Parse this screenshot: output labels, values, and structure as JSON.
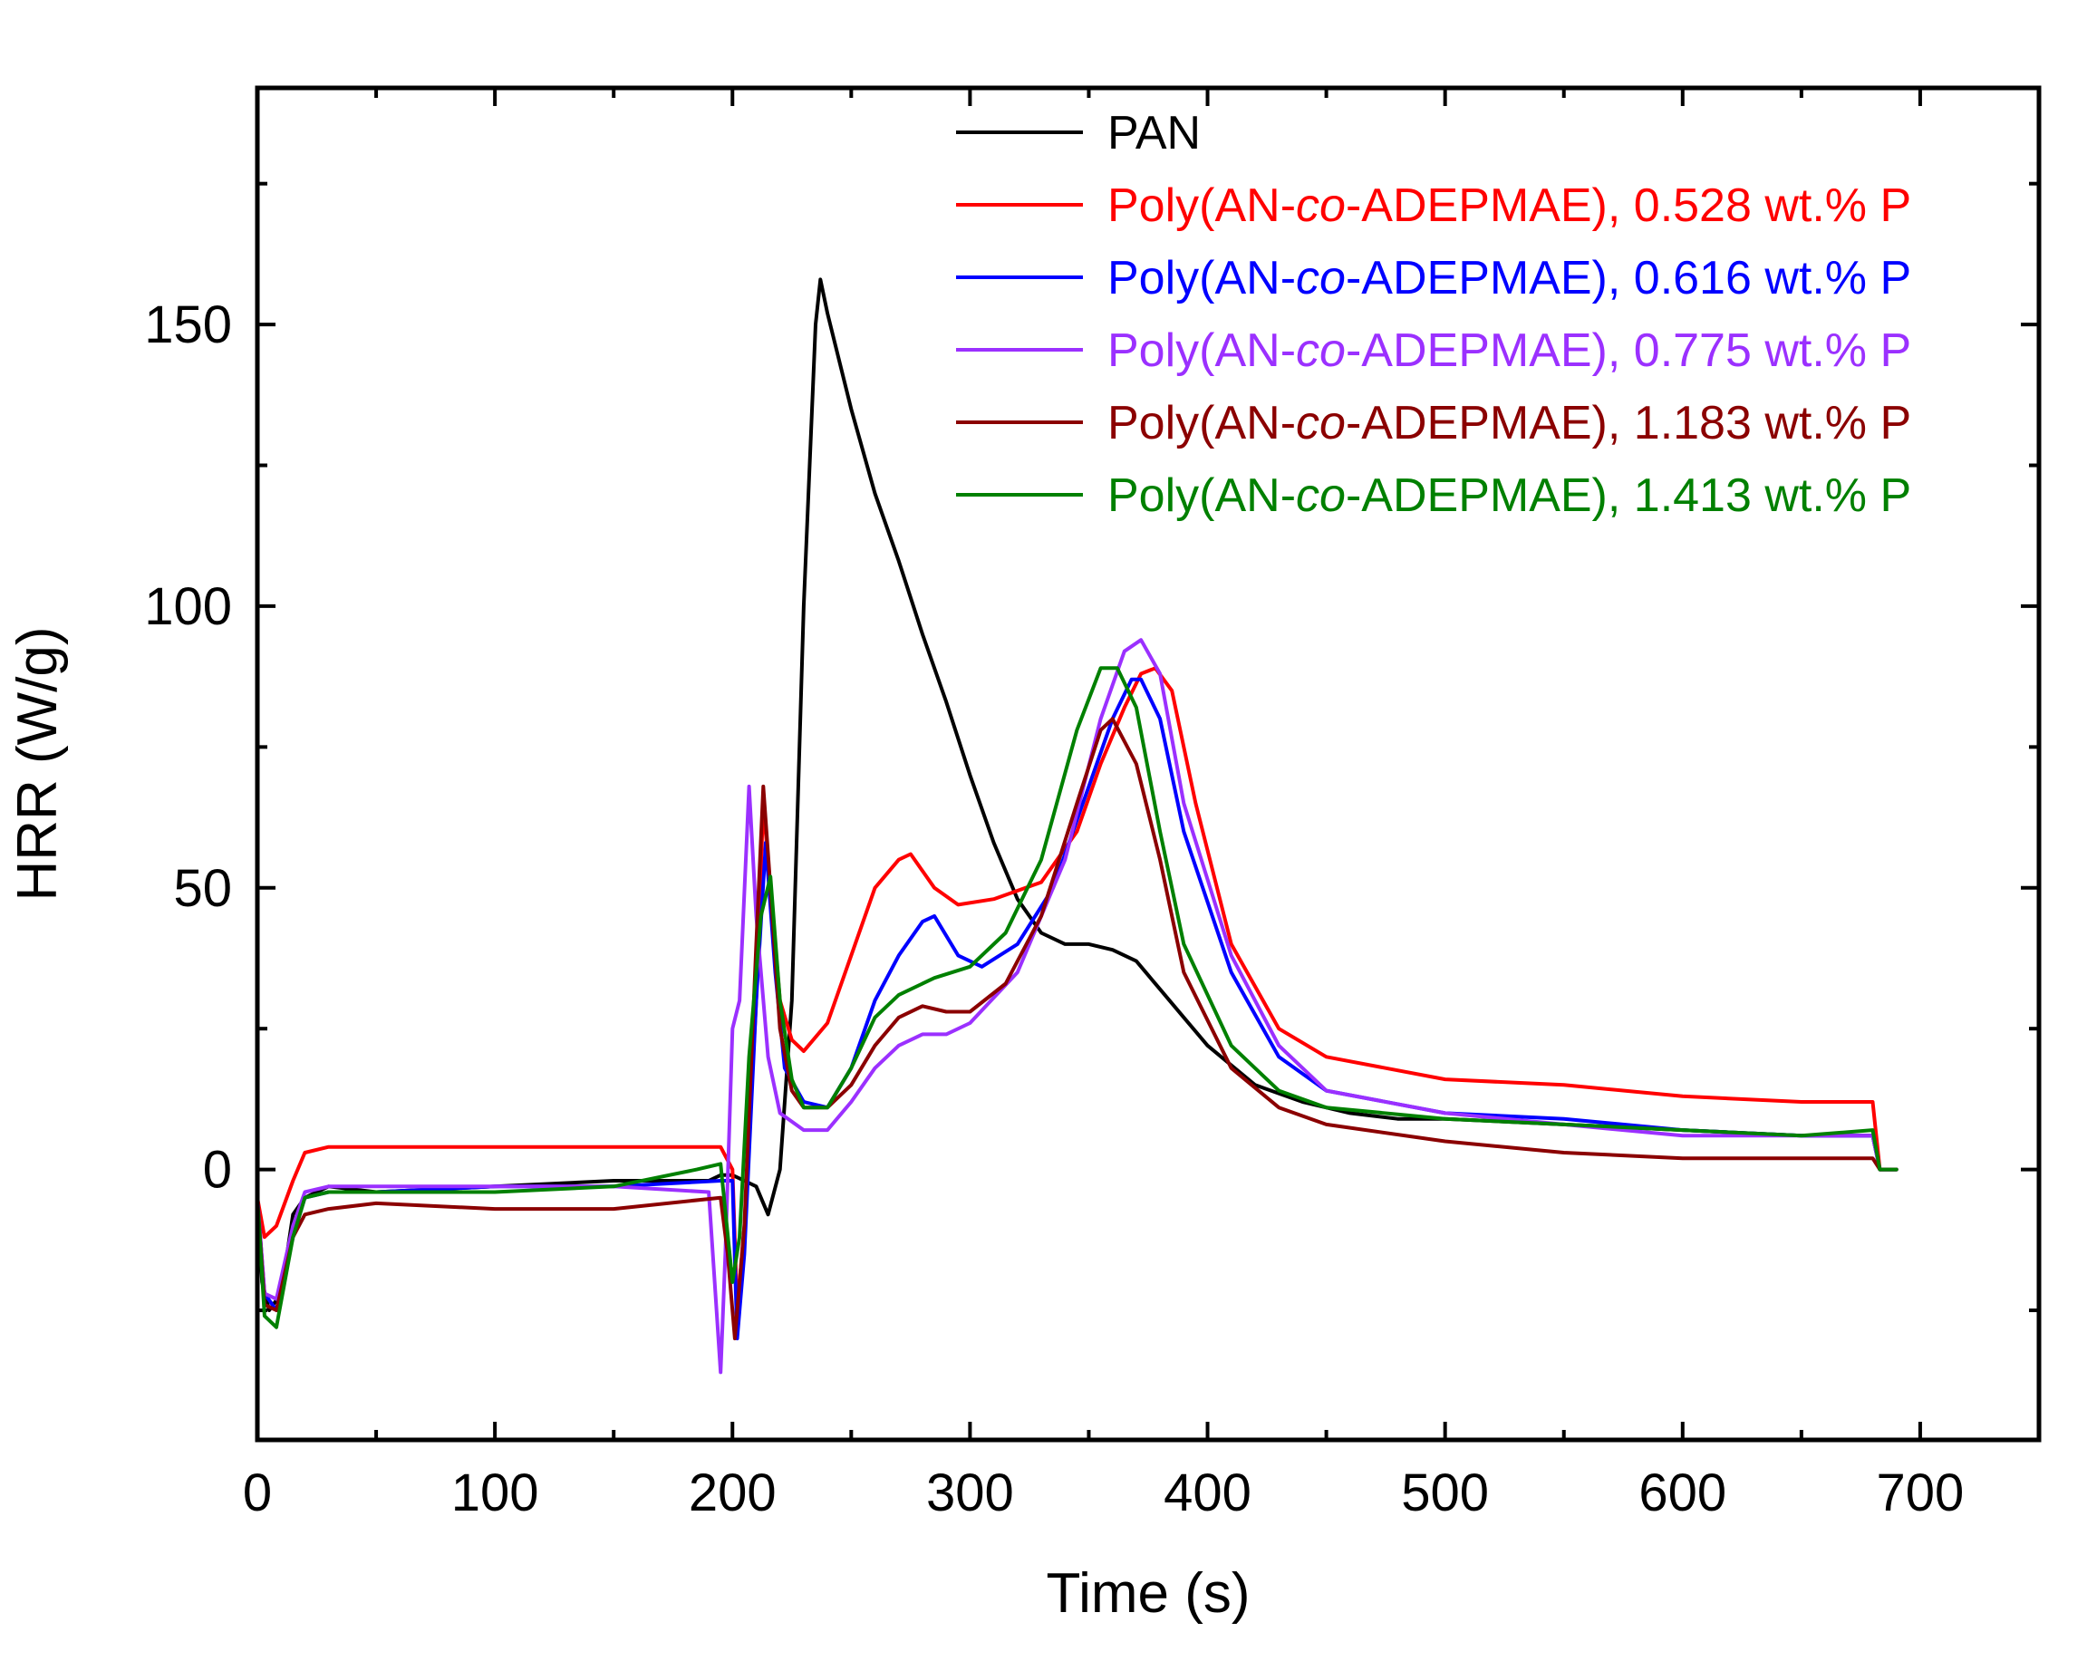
{
  "chart_data": {
    "type": "line",
    "title": "",
    "xlabel": "Time (s)",
    "ylabel": "HRR (W/g)",
    "xlim": [
      0,
      750
    ],
    "ylim": [
      -48,
      192
    ],
    "xticks": [
      0,
      100,
      200,
      300,
      400,
      500,
      600,
      700
    ],
    "xtick_labels": [
      "0",
      "100",
      "200",
      "300",
      "400",
      "500",
      "600",
      "700"
    ],
    "yticks": [
      0,
      50,
      100,
      150
    ],
    "ytick_labels": [
      "0",
      "50",
      "100",
      "150"
    ],
    "legend_position": "top-right",
    "series": [
      {
        "name": "PAN",
        "legend_prefix": "PAN",
        "legend_italic": "",
        "legend_suffix": "",
        "color": "#000000",
        "x": [
          0,
          2,
          5,
          10,
          15,
          20,
          30,
          50,
          100,
          150,
          190,
          195,
          200,
          205,
          210,
          215,
          220,
          225,
          230,
          235,
          237,
          240,
          250,
          260,
          270,
          280,
          290,
          300,
          310,
          320,
          330,
          340,
          350,
          360,
          370,
          380,
          390,
          400,
          420,
          440,
          460,
          480,
          500,
          550,
          600,
          650,
          680,
          683,
          690
        ],
        "y": [
          -5,
          -20,
          -25,
          -22,
          -8,
          -5,
          -3,
          -4,
          -3,
          -2,
          -2,
          -1,
          -1,
          -2,
          -3,
          -8,
          0,
          30,
          100,
          150,
          158,
          152,
          135,
          120,
          108,
          95,
          83,
          70,
          58,
          48,
          42,
          40,
          40,
          39,
          37,
          32,
          27,
          22,
          15,
          12,
          10,
          9,
          9,
          8,
          7,
          6,
          6,
          0,
          0
        ]
      },
      {
        "name": "Poly(AN-co-ADEPMAE), 0.528 wt.% P",
        "legend_prefix": "Poly(AN-",
        "legend_italic": "co",
        "legend_suffix": "-ADEPMAE), 0.528 wt.% P",
        "color": "#ff0000",
        "x": [
          0,
          3,
          8,
          15,
          20,
          30,
          50,
          100,
          150,
          195,
          200,
          202,
          205,
          210,
          213,
          217,
          220,
          225,
          230,
          240,
          250,
          260,
          270,
          275,
          285,
          295,
          310,
          330,
          345,
          355,
          365,
          372,
          378,
          385,
          395,
          410,
          430,
          450,
          500,
          550,
          600,
          650,
          680,
          683,
          690
        ],
        "y": [
          -5,
          -12,
          -10,
          -2,
          3,
          4,
          4,
          4,
          4,
          4,
          0,
          -25,
          -10,
          30,
          65,
          45,
          30,
          23,
          21,
          26,
          38,
          50,
          55,
          56,
          50,
          47,
          48,
          51,
          60,
          72,
          82,
          88,
          89,
          85,
          65,
          40,
          25,
          20,
          16,
          15,
          13,
          12,
          12,
          0,
          0
        ]
      },
      {
        "name": "Poly(AN-co-ADEPMAE), 0.616 wt.% P",
        "legend_prefix": "Poly(AN-",
        "legend_italic": "co",
        "legend_suffix": "-ADEPMAE), 0.616 wt.% P",
        "color": "#0000ff",
        "x": [
          0,
          3,
          8,
          15,
          20,
          30,
          50,
          100,
          150,
          195,
          200,
          202,
          205,
          210,
          214,
          218,
          222,
          230,
          240,
          250,
          260,
          270,
          280,
          285,
          295,
          305,
          320,
          335,
          350,
          360,
          368,
          372,
          380,
          390,
          410,
          430,
          450,
          500,
          550,
          600,
          650,
          680,
          683,
          690
        ],
        "y": [
          -5,
          -22,
          -25,
          -12,
          -5,
          -4,
          -4,
          -3,
          -3,
          -2,
          -2,
          -30,
          -15,
          30,
          58,
          35,
          18,
          12,
          11,
          18,
          30,
          38,
          44,
          45,
          38,
          36,
          40,
          50,
          68,
          80,
          87,
          87,
          80,
          60,
          35,
          20,
          14,
          10,
          9,
          7,
          6,
          6,
          0,
          0
        ]
      },
      {
        "name": "Poly(AN-co-ADEPMAE), 0.775 wt.% P",
        "legend_prefix": "Poly(AN-",
        "legend_italic": "co",
        "legend_suffix": "-ADEPMAE), 0.775 wt.% P",
        "color": "#9b30ff",
        "x": [
          0,
          3,
          8,
          15,
          20,
          30,
          50,
          100,
          150,
          190,
          195,
          197,
          200,
          203,
          207,
          210,
          215,
          220,
          230,
          240,
          250,
          260,
          270,
          280,
          290,
          300,
          320,
          340,
          355,
          365,
          372,
          380,
          390,
          410,
          430,
          450,
          500,
          550,
          600,
          650,
          680,
          683,
          690
        ],
        "y": [
          -5,
          -22,
          -23,
          -10,
          -4,
          -3,
          -3,
          -3,
          -3,
          -4,
          -36,
          -15,
          25,
          30,
          68,
          45,
          20,
          10,
          7,
          7,
          12,
          18,
          22,
          24,
          24,
          26,
          35,
          55,
          80,
          92,
          94,
          88,
          65,
          38,
          22,
          14,
          10,
          8,
          6,
          6,
          6,
          0,
          0
        ]
      },
      {
        "name": "Poly(AN-co-ADEPMAE), 1.183 wt.% P",
        "legend_prefix": "Poly(AN-",
        "legend_italic": "co",
        "legend_suffix": "-ADEPMAE), 1.183 wt.% P",
        "color": "#8b0000",
        "x": [
          0,
          3,
          8,
          15,
          20,
          30,
          50,
          100,
          150,
          195,
          198,
          201,
          205,
          210,
          213,
          216,
          220,
          225,
          230,
          240,
          250,
          260,
          270,
          280,
          290,
          300,
          315,
          330,
          345,
          355,
          360,
          370,
          380,
          390,
          410,
          430,
          450,
          500,
          550,
          600,
          650,
          680,
          683,
          690
        ],
        "y": [
          -5,
          -24,
          -25,
          -12,
          -8,
          -7,
          -6,
          -7,
          -7,
          -5,
          -15,
          -30,
          -10,
          40,
          68,
          50,
          25,
          14,
          11,
          11,
          15,
          22,
          27,
          29,
          28,
          28,
          33,
          45,
          65,
          78,
          80,
          72,
          55,
          35,
          18,
          11,
          8,
          5,
          3,
          2,
          2,
          2,
          0,
          0
        ]
      },
      {
        "name": "Poly(AN-co-ADEPMAE), 1.413 wt.% P",
        "legend_prefix": "Poly(AN-",
        "legend_italic": "co",
        "legend_suffix": "-ADEPMAE), 1.413 wt.% P",
        "color": "#008000",
        "x": [
          0,
          3,
          8,
          15,
          20,
          30,
          50,
          100,
          150,
          185,
          195,
          200,
          203,
          207,
          212,
          216,
          220,
          225,
          230,
          240,
          250,
          260,
          270,
          285,
          300,
          315,
          330,
          345,
          355,
          362,
          370,
          380,
          390,
          410,
          430,
          450,
          500,
          550,
          600,
          650,
          680,
          683,
          690
        ],
        "y": [
          -5,
          -26,
          -28,
          -12,
          -5,
          -4,
          -4,
          -4,
          -3,
          0,
          1,
          -20,
          -12,
          20,
          45,
          52,
          30,
          16,
          11,
          11,
          18,
          27,
          31,
          34,
          36,
          42,
          55,
          78,
          89,
          89,
          82,
          60,
          40,
          22,
          14,
          11,
          9,
          8,
          7,
          6,
          7,
          0,
          0
        ]
      }
    ]
  }
}
